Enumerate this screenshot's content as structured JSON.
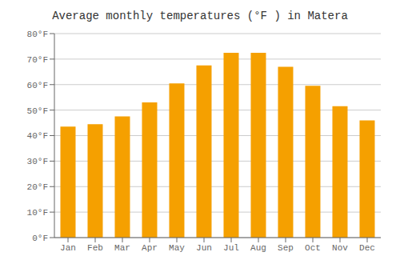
{
  "chart_data": {
    "type": "bar",
    "title": "Average monthly temperatures (°F ) in Matera",
    "categories": [
      "Jan",
      "Feb",
      "Mar",
      "Apr",
      "May",
      "Jun",
      "Jul",
      "Aug",
      "Sep",
      "Oct",
      "Nov",
      "Dec"
    ],
    "values": [
      43.5,
      44.5,
      47.5,
      53,
      60.5,
      67.5,
      72.5,
      72.5,
      67,
      59.5,
      51.5,
      46
    ],
    "color": "#F5A000",
    "ylim": [
      0,
      80
    ],
    "yticks": [
      {
        "value": 0,
        "label": "0°F"
      },
      {
        "value": 10,
        "label": "10°F"
      },
      {
        "value": 20,
        "label": "20°F"
      },
      {
        "value": 30,
        "label": "30°F"
      },
      {
        "value": 40,
        "label": "40°F"
      },
      {
        "value": 50,
        "label": "50°F"
      },
      {
        "value": 60,
        "label": "60°F"
      },
      {
        "value": 70,
        "label": "70°F"
      },
      {
        "value": 80,
        "label": "80°F"
      }
    ],
    "grid": true
  }
}
